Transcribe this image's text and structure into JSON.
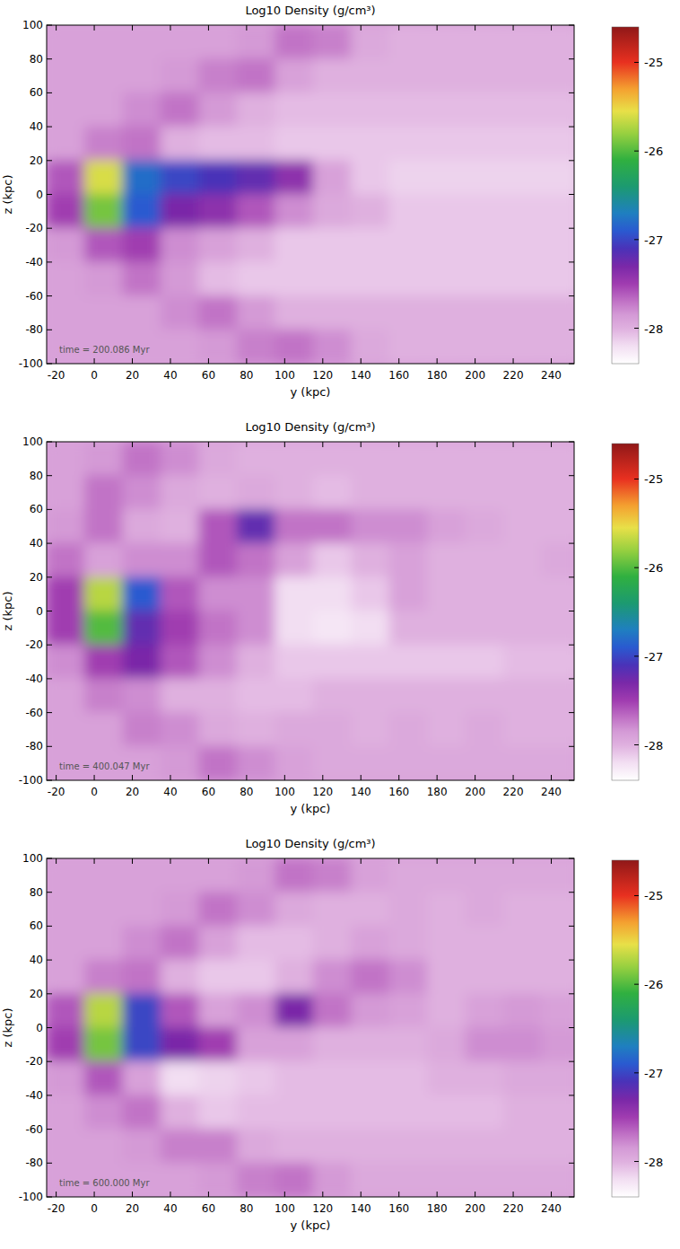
{
  "chart_data": [
    {
      "type": "heatmap",
      "title": "Log10 Density (g/cm³)",
      "x_label": "y (kpc)",
      "y_label": "z (kpc)",
      "annotation": "time = 200.086 Myr",
      "xlim": [
        -25,
        252
      ],
      "ylim": [
        -100,
        100
      ],
      "xticks": [
        -20,
        0,
        20,
        40,
        60,
        80,
        100,
        120,
        140,
        160,
        180,
        200,
        220,
        240
      ],
      "yticks": [
        -100,
        -80,
        -60,
        -40,
        -20,
        0,
        20,
        40,
        60,
        80,
        100
      ],
      "color_range": [
        -28.4,
        -24.6
      ],
      "color_ticks": [
        -25,
        -26,
        -27,
        -28
      ],
      "x": [
        -15,
        5,
        25,
        45,
        65,
        85,
        105,
        125,
        145,
        165,
        185,
        205,
        225,
        245
      ],
      "y": [
        90,
        70,
        50,
        30,
        10,
        -10,
        -30,
        -50,
        -70,
        -90
      ],
      "values": [
        [
          -27.9,
          -27.9,
          -27.9,
          -27.9,
          -27.9,
          -27.85,
          -27.7,
          -27.75,
          -27.95,
          -28.0,
          -28.0,
          -28.0,
          -28.0,
          -28.0
        ],
        [
          -27.9,
          -27.9,
          -27.9,
          -27.85,
          -27.75,
          -27.7,
          -27.9,
          -28.0,
          -28.0,
          -28.0,
          -28.0,
          -28.0,
          -28.0,
          -28.0
        ],
        [
          -27.9,
          -27.9,
          -27.8,
          -27.7,
          -27.85,
          -28.0,
          -28.05,
          -28.05,
          -28.05,
          -28.05,
          -28.05,
          -28.05,
          -28.05,
          -28.05
        ],
        [
          -27.9,
          -27.75,
          -27.7,
          -28.0,
          -28.05,
          -28.05,
          -28.1,
          -28.1,
          -28.1,
          -28.1,
          -28.1,
          -28.1,
          -28.1,
          -28.1
        ],
        [
          -27.6,
          -25.6,
          -26.8,
          -27.0,
          -27.1,
          -27.2,
          -27.4,
          -27.9,
          -28.1,
          -28.15,
          -28.15,
          -28.15,
          -28.15,
          -28.15
        ],
        [
          -27.5,
          -25.9,
          -26.9,
          -27.3,
          -27.4,
          -27.6,
          -27.8,
          -27.95,
          -28.0,
          -28.1,
          -28.1,
          -28.1,
          -28.1,
          -28.1
        ],
        [
          -27.85,
          -27.6,
          -27.5,
          -27.8,
          -27.9,
          -28.0,
          -28.1,
          -28.1,
          -28.1,
          -28.1,
          -28.1,
          -28.1,
          -28.1,
          -28.1
        ],
        [
          -27.9,
          -27.85,
          -27.7,
          -27.85,
          -28.05,
          -28.1,
          -28.1,
          -28.1,
          -28.1,
          -28.1,
          -28.1,
          -28.1,
          -28.1,
          -28.1
        ],
        [
          -27.9,
          -27.9,
          -27.9,
          -27.8,
          -27.7,
          -27.85,
          -28.0,
          -28.0,
          -28.0,
          -28.0,
          -28.0,
          -28.0,
          -28.0,
          -28.0
        ],
        [
          -27.9,
          -27.9,
          -27.9,
          -27.9,
          -27.85,
          -27.75,
          -27.7,
          -27.8,
          -27.95,
          -28.0,
          -28.0,
          -28.0,
          -28.0,
          -28.0
        ]
      ]
    },
    {
      "type": "heatmap",
      "title": "Log10 Density (g/cm³)",
      "x_label": "y (kpc)",
      "y_label": "z (kpc)",
      "annotation": "time = 400.047 Myr",
      "xlim": [
        -25,
        252
      ],
      "ylim": [
        -100,
        100
      ],
      "xticks": [
        -20,
        0,
        20,
        40,
        60,
        80,
        100,
        120,
        140,
        160,
        180,
        200,
        220,
        240
      ],
      "yticks": [
        -100,
        -80,
        -60,
        -40,
        -20,
        0,
        20,
        40,
        60,
        80,
        100
      ],
      "color_range": [
        -28.4,
        -24.6
      ],
      "color_ticks": [
        -25,
        -26,
        -27,
        -28
      ],
      "x": [
        -15,
        5,
        25,
        45,
        65,
        85,
        105,
        125,
        145,
        165,
        185,
        205,
        225,
        245
      ],
      "y": [
        90,
        70,
        50,
        30,
        10,
        -10,
        -30,
        -50,
        -70,
        -90
      ],
      "values": [
        [
          -27.9,
          -27.85,
          -27.7,
          -27.8,
          -27.95,
          -28.0,
          -28.0,
          -28.0,
          -28.0,
          -28.0,
          -28.0,
          -28.0,
          -28.0,
          -28.0
        ],
        [
          -27.9,
          -27.7,
          -27.8,
          -27.95,
          -28.0,
          -27.95,
          -28.0,
          -28.05,
          -28.0,
          -28.0,
          -28.0,
          -28.0,
          -28.0,
          -28.0
        ],
        [
          -27.85,
          -27.7,
          -27.95,
          -28.0,
          -27.6,
          -27.2,
          -27.7,
          -27.7,
          -27.8,
          -27.8,
          -27.9,
          -27.95,
          -28.0,
          -28.0
        ],
        [
          -27.7,
          -27.9,
          -27.8,
          -27.8,
          -27.6,
          -27.7,
          -27.9,
          -28.1,
          -28.0,
          -27.9,
          -28.0,
          -28.0,
          -28.0,
          -27.95
        ],
        [
          -27.5,
          -25.7,
          -26.9,
          -27.6,
          -27.8,
          -27.8,
          -28.2,
          -28.2,
          -28.1,
          -27.9,
          -28.0,
          -28.0,
          -28.0,
          -28.0
        ],
        [
          -27.5,
          -26.0,
          -27.2,
          -27.5,
          -27.7,
          -27.8,
          -28.2,
          -28.25,
          -28.2,
          -28.0,
          -28.0,
          -28.0,
          -28.0,
          -28.0
        ],
        [
          -27.8,
          -27.5,
          -27.3,
          -27.6,
          -27.8,
          -28.0,
          -28.1,
          -28.1,
          -28.1,
          -28.1,
          -28.1,
          -28.1,
          -28.05,
          -28.05
        ],
        [
          -27.9,
          -27.75,
          -27.8,
          -28.0,
          -28.0,
          -28.05,
          -28.05,
          -28.0,
          -28.0,
          -28.0,
          -28.0,
          -28.0,
          -28.0,
          -28.0
        ],
        [
          -27.9,
          -27.9,
          -27.75,
          -27.8,
          -27.95,
          -28.0,
          -27.95,
          -27.95,
          -28.0,
          -27.95,
          -28.0,
          -27.95,
          -28.0,
          -28.0
        ],
        [
          -27.9,
          -27.9,
          -27.9,
          -27.85,
          -27.7,
          -27.8,
          -27.9,
          -27.95,
          -27.95,
          -27.95,
          -27.95,
          -27.95,
          -27.95,
          -27.95
        ]
      ]
    },
    {
      "type": "heatmap",
      "title": "Log10 Density (g/cm³)",
      "x_label": "y (kpc)",
      "y_label": "z (kpc)",
      "annotation": "time = 600.000 Myr",
      "xlim": [
        -25,
        252
      ],
      "ylim": [
        -100,
        100
      ],
      "xticks": [
        -20,
        0,
        20,
        40,
        60,
        80,
        100,
        120,
        140,
        160,
        180,
        200,
        220,
        240
      ],
      "yticks": [
        -100,
        -80,
        -60,
        -40,
        -20,
        0,
        20,
        40,
        60,
        80,
        100
      ],
      "color_range": [
        -28.4,
        -24.6
      ],
      "color_ticks": [
        -25,
        -26,
        -27,
        -28
      ],
      "x": [
        -15,
        5,
        25,
        45,
        65,
        85,
        105,
        125,
        145,
        165,
        185,
        205,
        225,
        245
      ],
      "y": [
        90,
        70,
        50,
        30,
        10,
        -10,
        -30,
        -50,
        -70,
        -90
      ],
      "values": [
        [
          -27.9,
          -27.9,
          -27.9,
          -27.9,
          -27.9,
          -27.85,
          -27.7,
          -27.75,
          -27.9,
          -27.95,
          -27.95,
          -27.95,
          -27.95,
          -27.95
        ],
        [
          -27.9,
          -27.9,
          -27.9,
          -27.85,
          -27.7,
          -27.8,
          -27.95,
          -28.0,
          -28.0,
          -27.95,
          -28.0,
          -27.95,
          -28.0,
          -28.0
        ],
        [
          -27.9,
          -27.9,
          -27.8,
          -27.7,
          -27.9,
          -28.05,
          -28.05,
          -28.0,
          -27.9,
          -27.95,
          -28.0,
          -28.0,
          -28.0,
          -28.0
        ],
        [
          -27.9,
          -27.75,
          -27.7,
          -28.0,
          -28.1,
          -28.1,
          -28.0,
          -27.8,
          -27.7,
          -27.8,
          -28.0,
          -28.0,
          -28.0,
          -28.0
        ],
        [
          -27.6,
          -25.7,
          -27.0,
          -27.6,
          -27.9,
          -27.8,
          -27.3,
          -27.7,
          -27.85,
          -27.9,
          -28.0,
          -27.9,
          -27.85,
          -27.9
        ],
        [
          -27.5,
          -25.9,
          -27.0,
          -27.3,
          -27.5,
          -27.9,
          -27.9,
          -28.0,
          -28.0,
          -28.0,
          -27.95,
          -27.8,
          -27.8,
          -27.85
        ],
        [
          -27.85,
          -27.6,
          -27.9,
          -28.2,
          -28.15,
          -28.1,
          -28.05,
          -28.05,
          -28.05,
          -28.05,
          -28.0,
          -28.0,
          -27.95,
          -27.95
        ],
        [
          -27.9,
          -27.8,
          -27.7,
          -28.0,
          -28.1,
          -28.05,
          -28.05,
          -28.05,
          -28.05,
          -28.05,
          -28.05,
          -28.05,
          -28.0,
          -28.0
        ],
        [
          -27.9,
          -27.9,
          -27.85,
          -27.75,
          -27.75,
          -27.95,
          -28.0,
          -28.0,
          -28.0,
          -28.0,
          -28.0,
          -28.0,
          -28.0,
          -28.0
        ],
        [
          -27.9,
          -27.9,
          -27.9,
          -27.9,
          -27.85,
          -27.75,
          -27.7,
          -27.85,
          -27.95,
          -27.95,
          -27.95,
          -27.95,
          -27.95,
          -27.95
        ]
      ]
    }
  ]
}
